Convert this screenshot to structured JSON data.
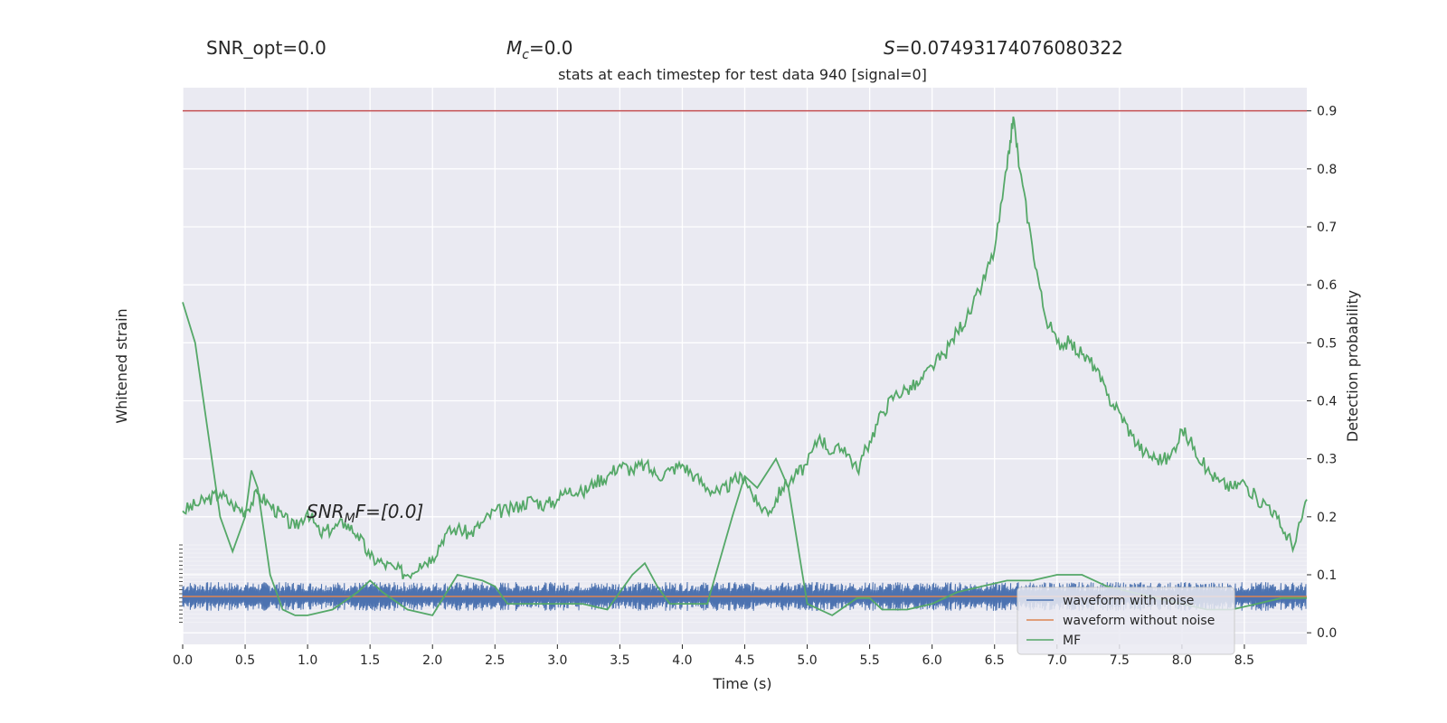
{
  "stats": {
    "snr_opt": "SNR_opt=0.0",
    "mc_symbol": "M",
    "mc_sub": "c",
    "mc_value": "=0.0",
    "s_symbol": "S",
    "s_value": "=0.07493174076080322"
  },
  "snr_mf": {
    "symbol": "SNR",
    "sub": "M",
    "rest": "F=[0.0]"
  },
  "colors": {
    "background": "#eaeaf2",
    "grid": "#ffffff",
    "waveform_with_noise": "#4c72b0",
    "waveform_without_noise": "#dd8452",
    "mf": "#55a868",
    "threshold": "#c44e52",
    "prob": "#55a868"
  },
  "chart_data": {
    "type": "line",
    "title": "stats at each timestep for test data 940 [signal=0]",
    "xlabel": "Time (s)",
    "ylabel_left": "Whitened strain",
    "ylabel_right": "Detection probability",
    "xlim": [
      0.0,
      9.0
    ],
    "ylim_right": [
      -0.02,
      0.94
    ],
    "grid": true,
    "x_ticks": [
      0.0,
      0.5,
      1.0,
      1.5,
      2.0,
      2.5,
      3.0,
      3.5,
      4.0,
      4.5,
      5.0,
      5.5,
      6.0,
      6.5,
      7.0,
      7.5,
      8.0,
      8.5
    ],
    "x_tick_labels": [
      "0.0",
      "0.5",
      "1.0",
      "1.5",
      "2.0",
      "2.5",
      "3.0",
      "3.5",
      "4.0",
      "4.5",
      "5.0",
      "5.5",
      "6.0",
      "6.5",
      "7.0",
      "7.5",
      "8.0",
      "8.5"
    ],
    "y_right_ticks": [
      0.0,
      0.1,
      0.2,
      0.3,
      0.4,
      0.5,
      0.6,
      0.7,
      0.8,
      0.9
    ],
    "y_right_tick_labels": [
      "0.0",
      "0.1",
      "0.2",
      "0.3",
      "0.4",
      "0.5",
      "0.6",
      "0.7",
      "0.8",
      "0.9"
    ],
    "threshold": 0.9,
    "legend": {
      "position": "lower-right",
      "entries": [
        "waveform with noise",
        "waveform without noise",
        "MF"
      ]
    },
    "detection_probability": {
      "x": [
        0.0,
        0.1,
        0.2,
        0.3,
        0.4,
        0.5,
        0.6,
        0.7,
        0.8,
        0.9,
        1.0,
        1.1,
        1.2,
        1.3,
        1.4,
        1.5,
        1.6,
        1.7,
        1.8,
        1.9,
        2.0,
        2.1,
        2.2,
        2.3,
        2.4,
        2.5,
        2.6,
        2.7,
        2.8,
        2.9,
        3.0,
        3.1,
        3.2,
        3.3,
        3.4,
        3.5,
        3.6,
        3.7,
        3.8,
        3.9,
        4.0,
        4.1,
        4.2,
        4.3,
        4.4,
        4.5,
        4.6,
        4.7,
        4.8,
        4.9,
        5.0,
        5.1,
        5.2,
        5.3,
        5.4,
        5.5,
        5.6,
        5.7,
        5.8,
        5.9,
        6.0,
        6.1,
        6.2,
        6.3,
        6.4,
        6.5,
        6.6,
        6.65,
        6.7,
        6.8,
        6.9,
        7.0,
        7.1,
        7.2,
        7.3,
        7.4,
        7.5,
        7.6,
        7.7,
        7.8,
        7.9,
        8.0,
        8.1,
        8.2,
        8.3,
        8.4,
        8.5,
        8.6,
        8.7,
        8.8,
        8.9,
        9.0
      ],
      "y": [
        0.21,
        0.22,
        0.23,
        0.24,
        0.22,
        0.21,
        0.24,
        0.22,
        0.2,
        0.18,
        0.21,
        0.17,
        0.18,
        0.19,
        0.17,
        0.13,
        0.12,
        0.11,
        0.1,
        0.12,
        0.13,
        0.17,
        0.18,
        0.17,
        0.19,
        0.21,
        0.21,
        0.22,
        0.23,
        0.22,
        0.23,
        0.25,
        0.24,
        0.26,
        0.27,
        0.29,
        0.28,
        0.29,
        0.27,
        0.28,
        0.29,
        0.27,
        0.25,
        0.24,
        0.26,
        0.27,
        0.22,
        0.21,
        0.25,
        0.27,
        0.29,
        0.34,
        0.31,
        0.32,
        0.28,
        0.33,
        0.38,
        0.41,
        0.42,
        0.43,
        0.46,
        0.48,
        0.52,
        0.55,
        0.6,
        0.66,
        0.8,
        0.89,
        0.8,
        0.67,
        0.55,
        0.5,
        0.5,
        0.48,
        0.46,
        0.41,
        0.38,
        0.34,
        0.31,
        0.3,
        0.3,
        0.35,
        0.32,
        0.28,
        0.26,
        0.25,
        0.26,
        0.23,
        0.22,
        0.18,
        0.15,
        0.23
      ]
    },
    "mf": {
      "x": [
        0.0,
        0.1,
        0.2,
        0.3,
        0.4,
        0.5,
        0.55,
        0.6,
        0.7,
        0.8,
        0.9,
        1.0,
        1.2,
        1.4,
        1.5,
        1.6,
        1.8,
        2.0,
        2.2,
        2.4,
        2.5,
        2.6,
        2.8,
        3.0,
        3.2,
        3.4,
        3.6,
        3.7,
        3.8,
        3.9,
        4.0,
        4.2,
        4.4,
        4.5,
        4.6,
        4.75,
        4.85,
        5.0,
        5.2,
        5.4,
        5.5,
        5.6,
        5.8,
        6.0,
        6.2,
        6.4,
        6.6,
        6.8,
        7.0,
        7.2,
        7.4,
        7.6,
        7.8,
        8.0,
        8.2,
        8.4,
        8.6,
        8.8,
        9.0
      ],
      "y": [
        0.57,
        0.5,
        0.35,
        0.2,
        0.14,
        0.2,
        0.28,
        0.25,
        0.1,
        0.04,
        0.03,
        0.03,
        0.04,
        0.07,
        0.09,
        0.07,
        0.04,
        0.03,
        0.1,
        0.09,
        0.08,
        0.05,
        0.05,
        0.05,
        0.05,
        0.04,
        0.1,
        0.12,
        0.08,
        0.05,
        0.05,
        0.05,
        0.2,
        0.27,
        0.25,
        0.3,
        0.25,
        0.05,
        0.03,
        0.06,
        0.06,
        0.04,
        0.04,
        0.05,
        0.07,
        0.08,
        0.09,
        0.09,
        0.1,
        0.1,
        0.08,
        0.07,
        0.06,
        0.05,
        0.04,
        0.04,
        0.05,
        0.06,
        0.06
      ]
    }
  }
}
